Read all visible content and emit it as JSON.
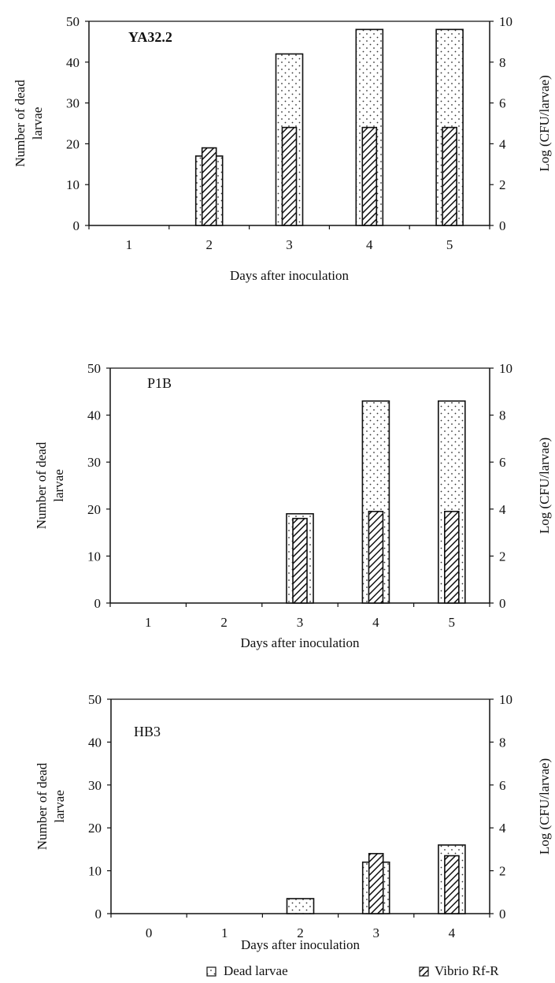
{
  "chart_data": [
    {
      "type": "bar",
      "panel_label": "YA32.2",
      "title": "",
      "xlabel": "Days after inoculation",
      "ylabel": "Number of dead larvae",
      "y2label": "Log (CFU/larvae)",
      "categories": [
        "1",
        "2",
        "3",
        "4",
        "5"
      ],
      "ylim": [
        0,
        50
      ],
      "y2lim": [
        0,
        10
      ],
      "yticks": [
        "0",
        "10",
        "20",
        "30",
        "40",
        "50"
      ],
      "y2ticks": [
        "0",
        "2",
        "4",
        "6",
        "8",
        "10"
      ],
      "series": [
        {
          "name": "Dead larvae",
          "axis": "left",
          "values": [
            0,
            17,
            42,
            48,
            48
          ]
        },
        {
          "name": "Vibrio Rf-R",
          "axis": "right",
          "values": [
            0,
            3.8,
            4.8,
            4.8,
            4.8
          ]
        }
      ]
    },
    {
      "type": "bar",
      "panel_label": "P1B",
      "title": "",
      "xlabel": "Days after inoculation",
      "ylabel": "Number of dead larvae",
      "y2label": "Log (CFU/larvae)",
      "categories": [
        "1",
        "2",
        "3",
        "4",
        "5"
      ],
      "ylim": [
        0,
        50
      ],
      "y2lim": [
        0,
        10
      ],
      "yticks": [
        "0",
        "10",
        "20",
        "30",
        "40",
        "50"
      ],
      "y2ticks": [
        "0",
        "2",
        "4",
        "6",
        "8",
        "10"
      ],
      "series": [
        {
          "name": "Dead larvae",
          "axis": "left",
          "values": [
            0,
            0,
            19,
            43,
            43
          ]
        },
        {
          "name": "Vibrio Rf-R",
          "axis": "right",
          "values": [
            0,
            0,
            3.6,
            3.9,
            3.9
          ]
        }
      ]
    },
    {
      "type": "bar",
      "panel_label": "HB3",
      "title": "",
      "xlabel": "Days after inoculation",
      "ylabel": "Number of dead larvae",
      "y2label": "Log (CFU/larvae)",
      "categories": [
        "0",
        "1",
        "2",
        "3",
        "4"
      ],
      "ylim": [
        0,
        50
      ],
      "y2lim": [
        0,
        10
      ],
      "yticks": [
        "0",
        "10",
        "20",
        "30",
        "40",
        "50"
      ],
      "y2ticks": [
        "0",
        "2",
        "4",
        "6",
        "8",
        "10"
      ],
      "series": [
        {
          "name": "Dead larvae",
          "axis": "left",
          "values": [
            0,
            0,
            3.5,
            12,
            16
          ]
        },
        {
          "name": "Vibrio Rf-R",
          "axis": "right",
          "values": [
            0,
            0,
            0,
            2.8,
            2.7
          ]
        }
      ]
    }
  ],
  "legend": {
    "dead_larvae": "Dead larvae",
    "vibrio": "Vibrio Rf-R",
    "placement": "bottom"
  }
}
